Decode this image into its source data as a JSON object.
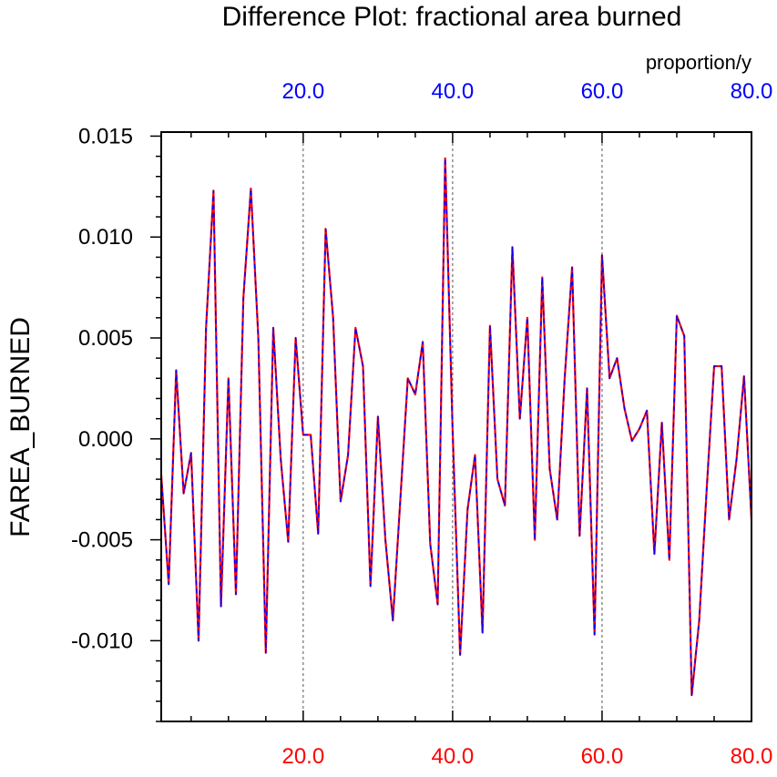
{
  "chart_data": {
    "type": "line",
    "title": "Difference Plot: fractional area burned",
    "ylabel": "FAREA_BURNED",
    "top_axis_label": "proportion/y",
    "xlim": [
      1,
      80
    ],
    "ylim": [
      -0.014,
      0.0152
    ],
    "bottom_ticks": [
      "20.0",
      "40.0",
      "60.0",
      "80.0"
    ],
    "top_ticks": [
      "20.0",
      "40.0",
      "60.0",
      "80.0"
    ],
    "y_ticks": [
      "0.015",
      "0.010",
      "0.005",
      "0.000",
      "-0.005",
      "-0.010"
    ],
    "grid": "dotted vertical at 20, 40, 60",
    "colors": {
      "bottom_axis_text": "#ff0000",
      "top_axis_text": "#0000ff",
      "series_solid": "#ff0000",
      "series_dashed": "#0000ff",
      "grid": "#555555"
    },
    "x": [
      1,
      2,
      3,
      4,
      5,
      6,
      7,
      8,
      9,
      10,
      11,
      12,
      13,
      14,
      15,
      16,
      17,
      18,
      19,
      20,
      21,
      22,
      23,
      24,
      25,
      26,
      27,
      28,
      29,
      30,
      31,
      32,
      33,
      34,
      35,
      36,
      37,
      38,
      39,
      40,
      41,
      42,
      43,
      44,
      45,
      46,
      47,
      48,
      49,
      50,
      51,
      52,
      53,
      54,
      55,
      56,
      57,
      58,
      59,
      60,
      61,
      62,
      63,
      64,
      65,
      66,
      67,
      68,
      69,
      70,
      71,
      72,
      73,
      74,
      75,
      76,
      77,
      78,
      79,
      80
    ],
    "series": [
      {
        "name": "difference",
        "values": [
          -0.0018,
          -0.0072,
          0.0034,
          -0.0027,
          -0.0007,
          -0.01,
          0.0055,
          0.0123,
          -0.0083,
          0.003,
          -0.0077,
          0.007,
          0.0124,
          0.005,
          -0.0106,
          0.0055,
          -0.001,
          -0.0051,
          0.005,
          0.0002,
          0.0002,
          -0.0047,
          0.0104,
          0.006,
          -0.0031,
          -0.0008,
          0.0055,
          0.0036,
          -0.0073,
          0.0011,
          -0.005,
          -0.009,
          -0.003,
          0.003,
          0.0022,
          0.0048,
          -0.0052,
          -0.0082,
          0.0139,
          0.0004,
          -0.0107,
          -0.0035,
          -0.0008,
          -0.0096,
          0.0056,
          -0.002,
          -0.0033,
          0.0095,
          0.001,
          0.006,
          -0.005,
          0.008,
          -0.0015,
          -0.004,
          0.003,
          0.0085,
          -0.0048,
          0.0025,
          -0.0097,
          0.0091,
          0.003,
          0.004,
          0.0015,
          -0.0001,
          0.0005,
          0.0014,
          -0.0057,
          0.0008,
          -0.006,
          0.0061,
          0.0051,
          -0.0127,
          -0.009,
          -0.0025,
          0.0036,
          0.0036,
          -0.004,
          -0.001,
          0.0031,
          -0.004
        ]
      }
    ]
  }
}
